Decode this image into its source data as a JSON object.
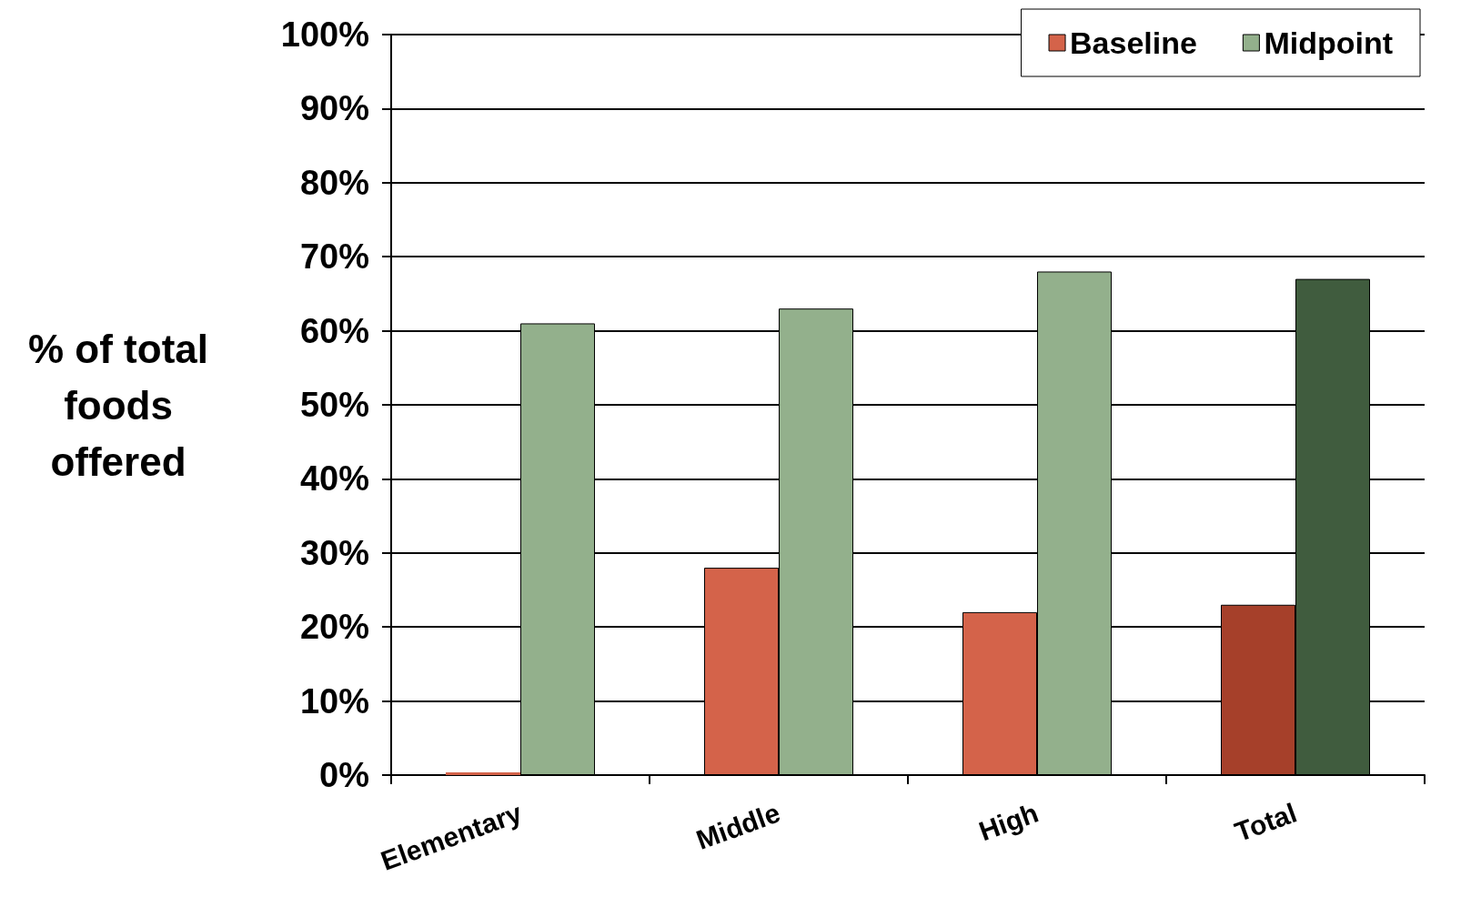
{
  "chart_data": {
    "type": "bar",
    "ylabel": "% of total foods offered",
    "categories": [
      "Elementary",
      "Middle",
      "High",
      "Total"
    ],
    "series": [
      {
        "name": "Baseline",
        "color": "#d4634a",
        "colors": [
          "#d4634a",
          "#d4634a",
          "#d4634a",
          "#a6402a"
        ],
        "values": [
          0,
          28,
          22,
          23
        ]
      },
      {
        "name": "Midpoint",
        "color": "#93b08c",
        "colors": [
          "#93b08c",
          "#93b08c",
          "#93b08c",
          "#405c3e"
        ],
        "values": [
          61,
          63,
          68,
          67
        ]
      }
    ],
    "ylim": [
      0,
      100
    ],
    "yticks": [
      {
        "value": 0,
        "label": "0%"
      },
      {
        "value": 10,
        "label": "10%"
      },
      {
        "value": 20,
        "label": "20%"
      },
      {
        "value": 30,
        "label": "30%"
      },
      {
        "value": 40,
        "label": "40%"
      },
      {
        "value": 50,
        "label": "50%"
      },
      {
        "value": 60,
        "label": "60%"
      },
      {
        "value": 70,
        "label": "70%"
      },
      {
        "value": 80,
        "label": "80%"
      },
      {
        "value": 90,
        "label": "90%"
      },
      {
        "value": 100,
        "label": "100%"
      }
    ],
    "grid": "y",
    "legend": "top right"
  }
}
